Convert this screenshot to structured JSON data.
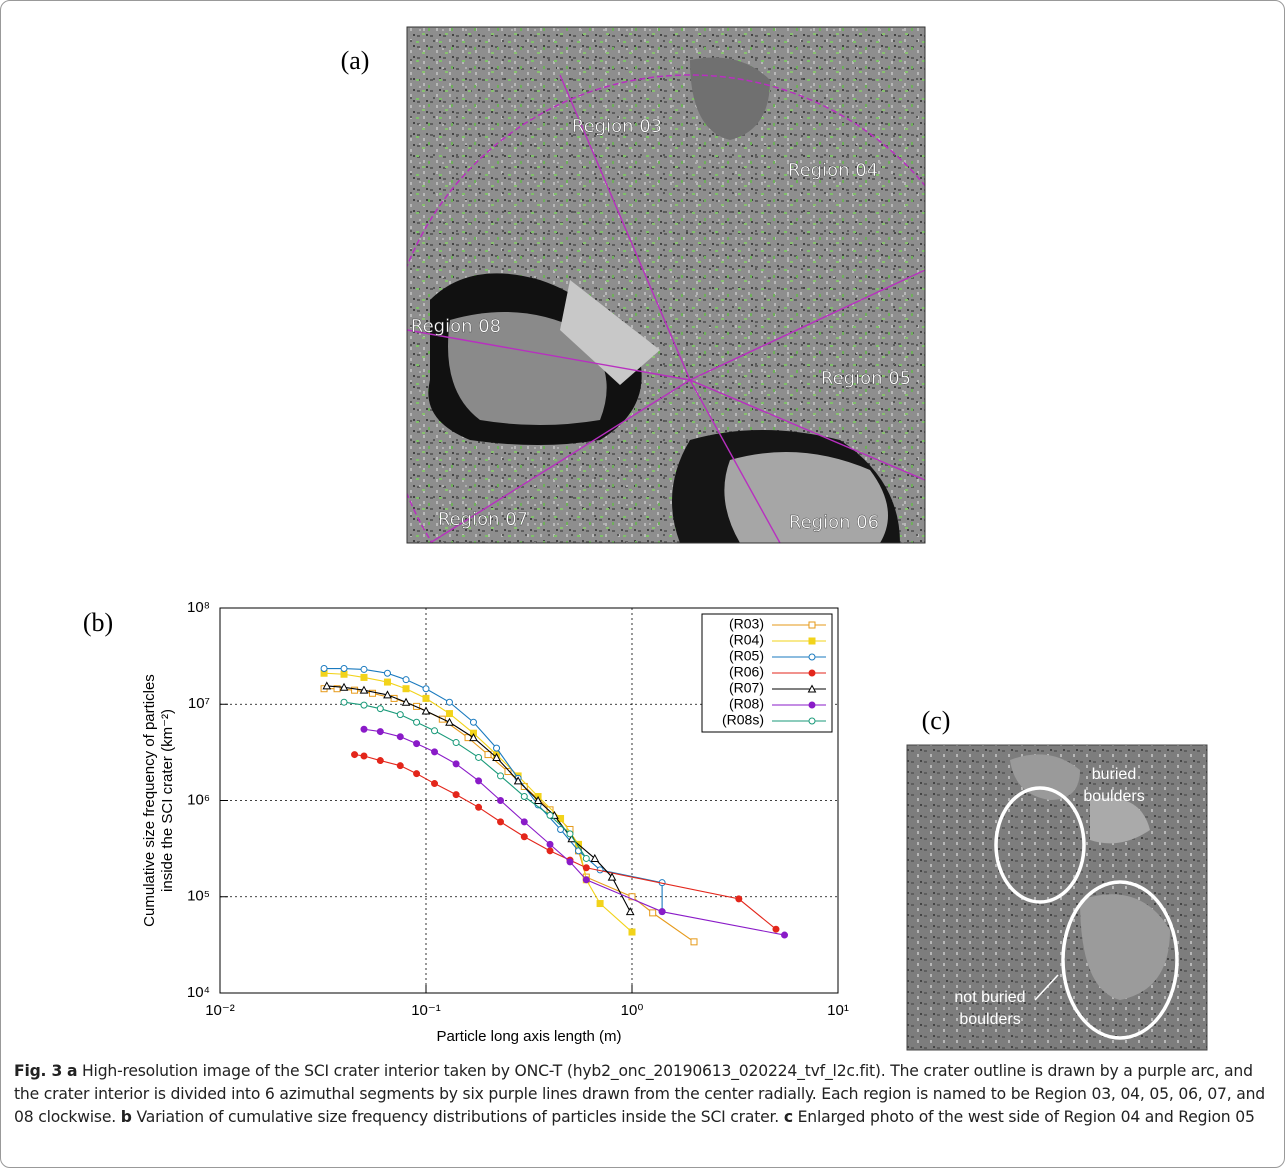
{
  "panel_a": {
    "label": "(a)",
    "regions": [
      "Region 03",
      "Region 04",
      "Region 08",
      "Region 05",
      "Region 07",
      "Region 06"
    ]
  },
  "panel_b_label": "(b)",
  "chart_data": {
    "type": "line",
    "xlabel": "Particle long axis length (m)",
    "ylabel": [
      "Cumulative size frequency of particles",
      "inside the SCI crater (km⁻²)"
    ],
    "xscale": "log",
    "yscale": "log",
    "grid": true,
    "legend": "upper right",
    "xlim": [
      0.01,
      10
    ],
    "ylim": [
      10000,
      100000000
    ],
    "xticks": [
      {
        "value": 0.01,
        "label": "10⁻²"
      },
      {
        "value": 0.1,
        "label": "10⁻¹"
      },
      {
        "value": 1,
        "label": "10⁰"
      },
      {
        "value": 10,
        "label": "10¹"
      }
    ],
    "yticks": [
      {
        "value": 10000,
        "label": "10⁴"
      },
      {
        "value": 100000,
        "label": "10⁵"
      },
      {
        "value": 1000000,
        "label": "10⁶"
      },
      {
        "value": 10000000,
        "label": "10⁷"
      },
      {
        "value": 100000000,
        "label": "10⁸"
      }
    ],
    "series": [
      {
        "name": "(R03)",
        "color": "#e69a1a",
        "marker": "open-square",
        "x": [
          0.032,
          0.037,
          0.045,
          0.055,
          0.07,
          0.09,
          0.12,
          0.16,
          0.2,
          0.25,
          0.3,
          0.4,
          0.5,
          0.55,
          0.6,
          1.0,
          1.26,
          2.0
        ],
        "values": [
          14500000,
          14500000,
          14000000,
          13000000,
          11500000,
          9500000,
          7000000,
          4500000,
          3000000,
          2000000,
          1400000,
          800000,
          500000,
          300000,
          160000,
          100000,
          68000,
          34000
        ]
      },
      {
        "name": "(R04)",
        "color": "#f2d31a",
        "marker": "filled-square",
        "x": [
          0.032,
          0.04,
          0.05,
          0.065,
          0.08,
          0.1,
          0.13,
          0.17,
          0.22,
          0.28,
          0.35,
          0.45,
          0.55,
          0.6,
          0.7,
          1.0
        ],
        "values": [
          21000000,
          20500000,
          19000000,
          17000000,
          14500000,
          11500000,
          8000000,
          5000000,
          3000000,
          1800000,
          1100000,
          650000,
          350000,
          150000,
          85000,
          43000
        ]
      },
      {
        "name": "(R05)",
        "color": "#1a7abf",
        "marker": "open-circle",
        "x": [
          0.032,
          0.04,
          0.05,
          0.065,
          0.08,
          0.1,
          0.13,
          0.17,
          0.22,
          0.28,
          0.35,
          0.45,
          0.55,
          0.7,
          1.4,
          1.4
        ],
        "values": [
          23500000,
          23500000,
          23000000,
          21000000,
          18000000,
          14500000,
          10500000,
          6500000,
          3500000,
          1700000,
          900000,
          500000,
          300000,
          190000,
          140000,
          70000
        ]
      },
      {
        "name": "(R06)",
        "color": "#e3261b",
        "marker": "filled-circle",
        "x": [
          0.045,
          0.05,
          0.06,
          0.075,
          0.09,
          0.11,
          0.14,
          0.18,
          0.23,
          0.3,
          0.4,
          0.5,
          0.6,
          3.3,
          5.0
        ],
        "values": [
          3000000,
          2900000,
          2600000,
          2300000,
          1900000,
          1500000,
          1150000,
          850000,
          600000,
          420000,
          300000,
          240000,
          200000,
          95000,
          46000
        ]
      },
      {
        "name": "(R07)",
        "color": "#000000",
        "marker": "open-triangle",
        "x": [
          0.033,
          0.04,
          0.05,
          0.065,
          0.08,
          0.1,
          0.13,
          0.17,
          0.22,
          0.28,
          0.35,
          0.42,
          0.51,
          0.66,
          0.8,
          0.98
        ],
        "values": [
          15500000,
          15000000,
          14000000,
          12500000,
          10500000,
          8500000,
          6500000,
          4500000,
          2800000,
          1600000,
          1000000,
          700000,
          400000,
          250000,
          160000,
          70000
        ]
      },
      {
        "name": "(R08)",
        "color": "#8a1bc8",
        "marker": "filled-circle",
        "x": [
          0.05,
          0.06,
          0.075,
          0.09,
          0.11,
          0.14,
          0.18,
          0.23,
          0.3,
          0.4,
          0.5,
          0.6,
          1.4,
          5.5
        ],
        "values": [
          5500000,
          5200000,
          4600000,
          3900000,
          3200000,
          2400000,
          1600000,
          1000000,
          600000,
          350000,
          230000,
          150000,
          70000,
          40000
        ]
      },
      {
        "name": "(R08s)",
        "color": "#1a9a7a",
        "marker": "open-circle",
        "x": [
          0.04,
          0.05,
          0.06,
          0.075,
          0.09,
          0.11,
          0.14,
          0.18,
          0.23,
          0.3,
          0.4,
          0.5,
          0.6
        ],
        "values": [
          10500000,
          9800000,
          9000000,
          7800000,
          6500000,
          5300000,
          4000000,
          2800000,
          1800000,
          1100000,
          700000,
          450000,
          250000
        ]
      }
    ]
  },
  "panel_c": {
    "label": "(c)",
    "annotations": [
      [
        "buried",
        "boulders"
      ],
      [
        "not buried",
        "boulders"
      ]
    ]
  },
  "caption": {
    "label": "Fig. 3",
    "parts": [
      {
        "key": "a",
        "text": "High-resolution image of the SCI crater interior taken by ONC-T (hyb2_onc_20190613_020224_tvf_l2c.fit). The crater outline is drawn by a purple arc, and the crater interior is divided into 6 azimuthal segments by six purple lines drawn from the center radially. Each region is named to be Region 03, 04, 05, 06, 07, and 08 clockwise."
      },
      {
        "key": "b",
        "text": "Variation of cumulative size frequency distributions of particles inside the SCI crater."
      },
      {
        "key": "c",
        "text": "Enlarged photo of the west side of Region 04 and Region 05"
      }
    ]
  }
}
